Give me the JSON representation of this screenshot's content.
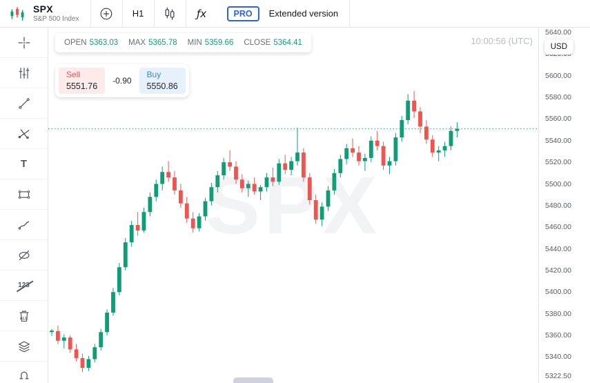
{
  "header": {
    "symbol": "SPX",
    "symbol_description": "S&P 500 Index",
    "timeframe": "H1",
    "fx_glyph": "ƒx",
    "pro_badge": "PRO",
    "extended_label": "Extended version"
  },
  "legend": {
    "open_label": "OPEN",
    "open_value": "5363.03",
    "max_label": "MAX",
    "max_value": "5365.78",
    "min_label": "MIN",
    "min_value": "5359.66",
    "close_label": "CLOSE",
    "close_value": "5364.41"
  },
  "trade_panel": {
    "sell_label": "Sell",
    "sell_price": "5551.76",
    "spread": "-0.90",
    "buy_label": "Buy",
    "buy_price": "5550.86"
  },
  "clock": "10:00:56 (UTC)",
  "currency_badge": "USD",
  "watermark": "SPX",
  "tools": {
    "names": [
      "crosshair",
      "bars",
      "trend-line",
      "cross-lines",
      "text",
      "rectangle",
      "brush",
      "hide-drawings",
      "hide-numbers",
      "remove-all",
      "layers",
      "magnet"
    ],
    "text_label": "T",
    "numbers_label": "123",
    "trash_label": "ALL"
  },
  "colors": {
    "up_green": "#0f9d78",
    "down_red": "#f0544f",
    "buy_blue": "#2f89e0",
    "pro_blue": "#2961ff"
  },
  "chart_data": {
    "type": "candlestick",
    "symbol": "SPX",
    "interval": "H1",
    "ylim": [
      5322.5,
      5640
    ],
    "y_ticks": [
      "5640.00",
      "5620.00",
      "5600.00",
      "5580.00",
      "5560.00",
      "5540.00",
      "5520.00",
      "5500.00",
      "5480.00",
      "5460.00",
      "5440.00",
      "5420.00",
      "5400.00",
      "5380.00",
      "5360.00",
      "5340.00",
      "5322.50"
    ],
    "current_price": 5550.86,
    "colors": {
      "up": "#0f9d78",
      "down": "#f0544f"
    },
    "candles": [
      [
        5363,
        5366,
        5359.5,
        5364.4
      ],
      [
        5364,
        5369,
        5352,
        5355
      ],
      [
        5355,
        5361,
        5348,
        5358
      ],
      [
        5358,
        5360,
        5344,
        5347
      ],
      [
        5347,
        5352,
        5336,
        5339
      ],
      [
        5339,
        5343,
        5326,
        5330
      ],
      [
        5330,
        5341,
        5327,
        5338
      ],
      [
        5338,
        5352,
        5335,
        5349
      ],
      [
        5349,
        5366,
        5346,
        5363
      ],
      [
        5363,
        5384,
        5360,
        5381
      ],
      [
        5381,
        5404,
        5378,
        5400
      ],
      [
        5400,
        5427,
        5397,
        5423
      ],
      [
        5423,
        5450,
        5420,
        5446
      ],
      [
        5446,
        5466,
        5442,
        5462
      ],
      [
        5462,
        5474,
        5452,
        5457
      ],
      [
        5457,
        5478,
        5455,
        5474
      ],
      [
        5474,
        5492,
        5470,
        5488
      ],
      [
        5488,
        5504,
        5484,
        5500
      ],
      [
        5500,
        5516,
        5494,
        5511
      ],
      [
        5511,
        5521,
        5502,
        5506
      ],
      [
        5506,
        5512,
        5490,
        5494
      ],
      [
        5494,
        5500,
        5478,
        5482
      ],
      [
        5482,
        5488,
        5464,
        5468
      ],
      [
        5468,
        5474,
        5455,
        5459
      ],
      [
        5459,
        5473,
        5456,
        5470
      ],
      [
        5470,
        5487,
        5466,
        5484
      ],
      [
        5484,
        5501,
        5480,
        5497
      ],
      [
        5497,
        5512,
        5492,
        5508
      ],
      [
        5508,
        5524,
        5504,
        5520
      ],
      [
        5520,
        5531,
        5512,
        5516
      ],
      [
        5516,
        5521,
        5500,
        5504
      ],
      [
        5504,
        5509,
        5492,
        5496
      ],
      [
        5496,
        5503,
        5488,
        5500
      ],
      [
        5500,
        5506,
        5490,
        5493
      ],
      [
        5493,
        5499,
        5485,
        5497
      ],
      [
        5497,
        5510,
        5493,
        5506
      ],
      [
        5506,
        5515,
        5498,
        5502
      ],
      [
        5502,
        5523,
        5499,
        5519
      ],
      [
        5519,
        5527,
        5509,
        5513
      ],
      [
        5513,
        5525,
        5508,
        5521
      ],
      [
        5521,
        5552,
        5517,
        5529
      ],
      [
        5529,
        5533,
        5502,
        5506
      ],
      [
        5506,
        5510,
        5481,
        5485
      ],
      [
        5485,
        5490,
        5463,
        5467
      ],
      [
        5467,
        5483,
        5461,
        5479
      ],
      [
        5479,
        5498,
        5475,
        5494
      ],
      [
        5494,
        5514,
        5490,
        5510
      ],
      [
        5510,
        5527,
        5506,
        5523
      ],
      [
        5523,
        5537,
        5518,
        5533
      ],
      [
        5533,
        5542,
        5525,
        5529
      ],
      [
        5529,
        5535,
        5517,
        5521
      ],
      [
        5521,
        5528,
        5512,
        5524
      ],
      [
        5524,
        5544,
        5520,
        5540
      ],
      [
        5540,
        5549,
        5531,
        5535
      ],
      [
        5535,
        5539,
        5513,
        5517
      ],
      [
        5517,
        5525,
        5509,
        5521
      ],
      [
        5521,
        5547,
        5517,
        5543
      ],
      [
        5543,
        5563,
        5539,
        5559
      ],
      [
        5559,
        5583,
        5555,
        5577
      ],
      [
        5577,
        5586,
        5561,
        5567
      ],
      [
        5567,
        5571,
        5547,
        5553
      ],
      [
        5553,
        5559,
        5537,
        5541
      ],
      [
        5541,
        5545,
        5525,
        5529
      ],
      [
        5529,
        5535,
        5521,
        5531
      ],
      [
        5531,
        5539,
        5525,
        5535
      ],
      [
        5535,
        5553,
        5531,
        5549
      ],
      [
        5549,
        5557,
        5543,
        5551
      ]
    ]
  }
}
